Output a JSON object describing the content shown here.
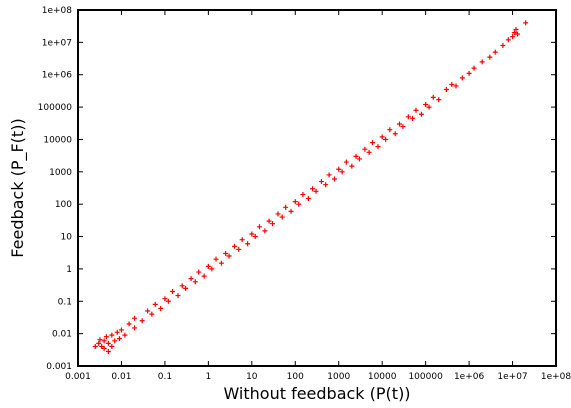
{
  "chart_data": {
    "type": "scatter",
    "xlabel": "Without feedback (P(t))",
    "ylabel": "Feedback  (P_F(t))",
    "xscale": "log",
    "yscale": "log",
    "xlim": [
      0.001,
      100000000
    ],
    "ylim": [
      0.001,
      100000000
    ],
    "x_ticks": [
      0.001,
      0.01,
      0.1,
      1,
      10,
      100,
      1000,
      10000,
      100000,
      1000000,
      10000000,
      100000000
    ],
    "x_tick_labels": [
      "0.001",
      "0.01",
      "0.1",
      "1",
      "10",
      "100",
      "1000",
      "10000",
      "100000",
      "1e+06",
      "1e+07",
      "1e+08"
    ],
    "y_ticks": [
      0.001,
      0.01,
      0.1,
      1,
      10,
      100,
      1000,
      10000,
      100000,
      1000000,
      10000000,
      100000000
    ],
    "y_tick_labels": [
      "0.001",
      "0.01",
      "0.1",
      "1",
      "10",
      "100",
      "1000",
      "10000",
      "100000",
      "1e+06",
      "1e+07",
      "1e+08"
    ],
    "marker": "+",
    "marker_color": "#ff0000",
    "grid": false,
    "points": [
      [
        0.0025,
        0.004
      ],
      [
        0.003,
        0.005
      ],
      [
        0.0032,
        0.0065
      ],
      [
        0.0035,
        0.004
      ],
      [
        0.004,
        0.006
      ],
      [
        0.004,
        0.0035
      ],
      [
        0.0045,
        0.008
      ],
      [
        0.005,
        0.005
      ],
      [
        0.005,
        0.0028
      ],
      [
        0.006,
        0.009
      ],
      [
        0.006,
        0.004
      ],
      [
        0.007,
        0.006
      ],
      [
        0.008,
        0.011
      ],
      [
        0.009,
        0.007
      ],
      [
        0.01,
        0.013
      ],
      [
        0.012,
        0.009
      ],
      [
        0.015,
        0.02
      ],
      [
        0.02,
        0.015
      ],
      [
        0.02,
        0.03
      ],
      [
        0.03,
        0.025
      ],
      [
        0.04,
        0.05
      ],
      [
        0.05,
        0.04
      ],
      [
        0.06,
        0.08
      ],
      [
        0.08,
        0.06
      ],
      [
        0.1,
        0.12
      ],
      [
        0.12,
        0.1
      ],
      [
        0.15,
        0.2
      ],
      [
        0.2,
        0.15
      ],
      [
        0.25,
        0.3
      ],
      [
        0.3,
        0.25
      ],
      [
        0.4,
        0.5
      ],
      [
        0.5,
        0.4
      ],
      [
        0.6,
        0.8
      ],
      [
        0.8,
        0.6
      ],
      [
        1,
        1.2
      ],
      [
        1.2,
        1
      ],
      [
        1.5,
        2
      ],
      [
        2,
        1.5
      ],
      [
        2.5,
        3
      ],
      [
        3,
        2.5
      ],
      [
        4,
        5
      ],
      [
        5,
        4
      ],
      [
        6,
        8
      ],
      [
        8,
        6
      ],
      [
        10,
        12
      ],
      [
        12,
        10
      ],
      [
        15,
        20
      ],
      [
        20,
        15
      ],
      [
        25,
        30
      ],
      [
        30,
        25
      ],
      [
        40,
        50
      ],
      [
        50,
        40
      ],
      [
        60,
        80
      ],
      [
        80,
        60
      ],
      [
        100,
        120
      ],
      [
        120,
        100
      ],
      [
        150,
        200
      ],
      [
        200,
        150
      ],
      [
        250,
        300
      ],
      [
        300,
        250
      ],
      [
        400,
        500
      ],
      [
        500,
        400
      ],
      [
        600,
        800
      ],
      [
        800,
        600
      ],
      [
        1000,
        1200
      ],
      [
        1200,
        1000
      ],
      [
        1500,
        2000
      ],
      [
        2000,
        1500
      ],
      [
        2500,
        3000
      ],
      [
        3000,
        2500
      ],
      [
        4000,
        5000
      ],
      [
        5000,
        4000
      ],
      [
        6000,
        8000
      ],
      [
        8000,
        6000
      ],
      [
        10000,
        12000
      ],
      [
        12000,
        10000
      ],
      [
        15000,
        20000
      ],
      [
        20000,
        15000
      ],
      [
        25000,
        30000
      ],
      [
        30000,
        25000
      ],
      [
        40000,
        50000
      ],
      [
        50000,
        45000
      ],
      [
        60000,
        80000
      ],
      [
        80000,
        60000
      ],
      [
        100000,
        120000
      ],
      [
        120000,
        100000
      ],
      [
        150000,
        200000
      ],
      [
        200000,
        170000
      ],
      [
        300000,
        350000
      ],
      [
        400000,
        500000
      ],
      [
        500000,
        450000
      ],
      [
        700000,
        800000
      ],
      [
        1000000,
        1100000
      ],
      [
        1300000,
        1600000
      ],
      [
        2000000,
        2500000
      ],
      [
        3000000,
        3500000
      ],
      [
        4000000,
        5000000
      ],
      [
        6000000,
        8000000
      ],
      [
        8000000,
        12000000
      ],
      [
        10000000,
        15000000
      ],
      [
        11000000,
        20000000
      ],
      [
        12000000,
        25000000
      ],
      [
        13000000,
        18000000
      ],
      [
        20000000,
        40000000
      ]
    ]
  }
}
